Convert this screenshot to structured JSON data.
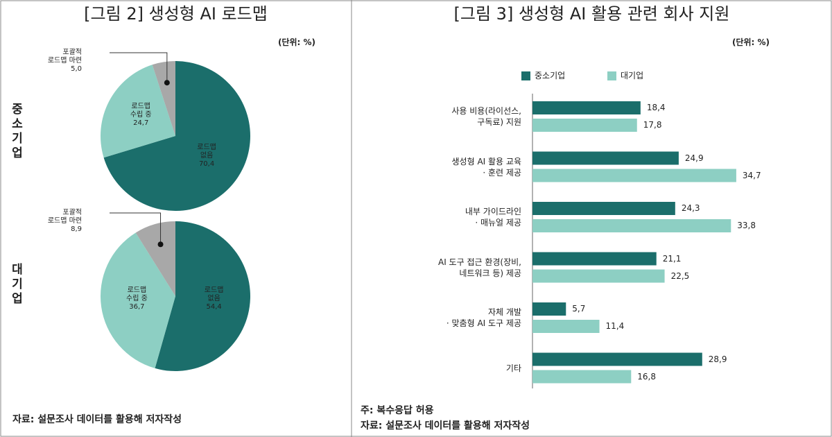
{
  "chart_data": [
    {
      "type": "pie",
      "title": "[그림 2] 생성형 AI 로드맵",
      "unit": "(단위: %)",
      "label": "중소기업",
      "categories": [
        "로드맵\n없음",
        "로드맵\n수립 중",
        "포괄적\n로드맵 마련"
      ],
      "values": [
        70.4,
        24.7,
        5.0
      ],
      "value_labels": [
        "70,4",
        "24,7",
        "5,0"
      ],
      "colors": [
        "#1b6e6b",
        "#8dcfc3",
        "#a8a8a8"
      ],
      "source": "자료: 설문조사 데이터를 활용해 저자작성"
    },
    {
      "type": "pie",
      "label": "대기업",
      "categories": [
        "로드맵\n없음",
        "로드맵\n수립 중",
        "포괄적\n로드맵 마련"
      ],
      "values": [
        54.4,
        36.7,
        8.9
      ],
      "value_labels": [
        "54,4",
        "36,7",
        "8,9"
      ],
      "colors": [
        "#1b6e6b",
        "#8dcfc3",
        "#a8a8a8"
      ]
    },
    {
      "type": "bar",
      "title": "[그림 3] 생성형 AI 활용 관련 회사 지원",
      "unit": "(단위: %)",
      "categories": [
        "사용 비용(라이선스,\n구독료) 지원",
        "생성형 AI 활용 교육\n· 훈련 제공",
        "내부 가이드라인\n· 매뉴얼 제공",
        "AI 도구 접근 환경(장비,\n네트워크 등) 제공",
        "자체 개발\n· 맞춤형 AI 도구 제공",
        "기타"
      ],
      "series": [
        {
          "name": "중소기업",
          "color": "#1b6e6b",
          "values": [
            18.4,
            24.9,
            24.3,
            21.1,
            5.7,
            28.9
          ],
          "value_labels": [
            "18,4",
            "24,9",
            "24,3",
            "21,1",
            "5,7",
            "28,9"
          ]
        },
        {
          "name": "대기업",
          "color": "#8dcfc3",
          "values": [
            17.8,
            34.7,
            33.8,
            22.5,
            11.4,
            16.8
          ],
          "value_labels": [
            "17,8",
            "34,7",
            "33,8",
            "22,5",
            "11,4",
            "16,8"
          ]
        }
      ],
      "note": "주: 복수응답 허용",
      "source": "자료: 설문조사 데이터를 활용해 저자작성"
    }
  ]
}
